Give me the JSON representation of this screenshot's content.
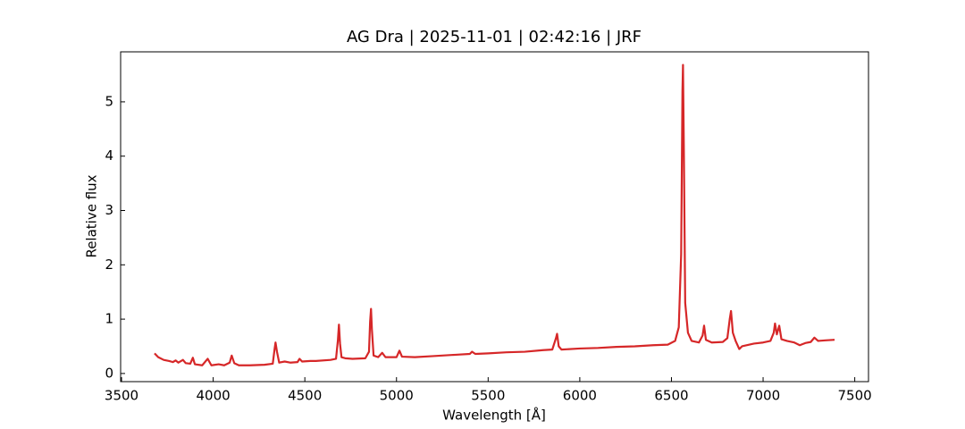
{
  "chart_data": {
    "type": "line",
    "title": "AG Dra | 2025-11-01 | 02:42:16 | JRF",
    "x_label": "Wavelength [Å]",
    "y_label": "Relative flux",
    "color": "#d62728",
    "x": [
      3680,
      3700,
      3730,
      3760,
      3780,
      3795,
      3810,
      3835,
      3850,
      3875,
      3889,
      3900,
      3940,
      3970,
      3990,
      4030,
      4060,
      4090,
      4101,
      4115,
      4140,
      4200,
      4280,
      4325,
      4335,
      4340,
      4348,
      4360,
      4390,
      4420,
      4460,
      4471,
      4485,
      4530,
      4560,
      4640,
      4670,
      4680,
      4686,
      4692,
      4700,
      4720,
      4760,
      4830,
      4850,
      4856,
      4861,
      4866,
      4875,
      4900,
      4922,
      4940,
      5000,
      5016,
      5030,
      5100,
      5200,
      5300,
      5400,
      5412,
      5430,
      5500,
      5600,
      5700,
      5800,
      5850,
      5870,
      5876,
      5885,
      5900,
      6000,
      6100,
      6200,
      6300,
      6400,
      6480,
      6520,
      6540,
      6553,
      6560,
      6563,
      6568,
      6575,
      6590,
      6610,
      6650,
      6670,
      6678,
      6688,
      6720,
      6780,
      6805,
      6818,
      6825,
      6835,
      6850,
      6870,
      6885,
      6950,
      7000,
      7040,
      7058,
      7065,
      7075,
      7088,
      7100,
      7130,
      7170,
      7200,
      7230,
      7260,
      7280,
      7300,
      7340,
      7390
    ],
    "values": [
      0.37,
      0.3,
      0.25,
      0.23,
      0.21,
      0.24,
      0.2,
      0.25,
      0.19,
      0.18,
      0.29,
      0.17,
      0.15,
      0.27,
      0.15,
      0.17,
      0.15,
      0.2,
      0.33,
      0.19,
      0.15,
      0.15,
      0.16,
      0.18,
      0.45,
      0.57,
      0.4,
      0.2,
      0.22,
      0.2,
      0.21,
      0.27,
      0.22,
      0.23,
      0.23,
      0.25,
      0.27,
      0.6,
      0.9,
      0.55,
      0.3,
      0.28,
      0.27,
      0.28,
      0.4,
      0.95,
      1.19,
      0.8,
      0.33,
      0.3,
      0.38,
      0.3,
      0.3,
      0.42,
      0.31,
      0.3,
      0.32,
      0.34,
      0.36,
      0.4,
      0.36,
      0.37,
      0.39,
      0.4,
      0.43,
      0.44,
      0.65,
      0.73,
      0.5,
      0.44,
      0.46,
      0.47,
      0.49,
      0.5,
      0.52,
      0.53,
      0.6,
      0.85,
      2.2,
      5.2,
      5.68,
      4.0,
      1.3,
      0.75,
      0.6,
      0.57,
      0.7,
      0.88,
      0.62,
      0.57,
      0.58,
      0.65,
      1.0,
      1.15,
      0.75,
      0.6,
      0.45,
      0.5,
      0.55,
      0.57,
      0.6,
      0.75,
      0.92,
      0.72,
      0.88,
      0.63,
      0.6,
      0.57,
      0.52,
      0.56,
      0.58,
      0.66,
      0.6,
      0.61,
      0.62
    ],
    "xlim": [
      3495,
      7575
    ],
    "ylim": [
      -0.15,
      5.92
    ],
    "xticks": [
      3500,
      4000,
      4500,
      5000,
      5500,
      6000,
      6500,
      7000,
      7500
    ],
    "yticks": [
      0,
      1,
      2,
      3,
      4,
      5
    ]
  }
}
